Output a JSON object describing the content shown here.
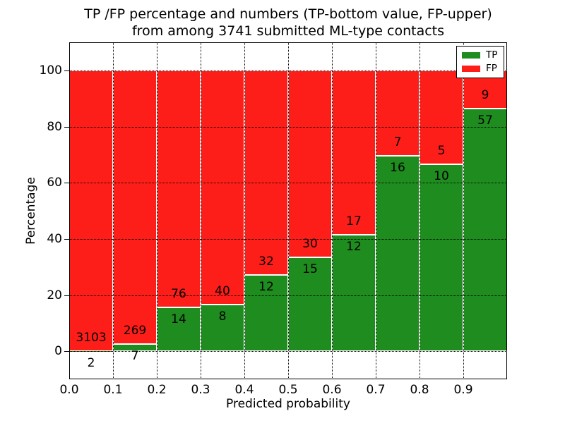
{
  "figure": {
    "title_line1": "TP /FP percentage and numbers (TP-bottom value, FP-upper)",
    "title_line2": "from among 3741 submitted ML-type contacts",
    "xlabel": "Predicted probability",
    "ylabel": "Percentage"
  },
  "axes": {
    "ylim": [
      -10,
      110
    ],
    "xlim": [
      0.0,
      1.0
    ],
    "yticks": [
      0,
      20,
      40,
      60,
      80,
      100
    ],
    "xtick_labels": [
      "0.0",
      "0.1",
      "0.2",
      "0.3",
      "0.4",
      "0.5",
      "0.6",
      "0.7",
      "0.8",
      "0.9"
    ],
    "grid_style": "dotted"
  },
  "legend": {
    "position": "upper right",
    "items": [
      {
        "label": "TP",
        "color": "#1e8c1e"
      },
      {
        "label": "FP",
        "color": "#fd1e19"
      }
    ]
  },
  "chart_data": {
    "type": "bar",
    "stacked": true,
    "normalized": "percent of bin total",
    "title": "TP /FP percentage and numbers (TP-bottom value, FP-upper) from among 3741 submitted ML-type contacts",
    "xlabel": "Predicted probability",
    "ylabel": "Percentage",
    "ylim": [
      -10,
      110
    ],
    "grid": true,
    "legend_position": "upper right",
    "total_contacts": 3741,
    "bin_edges": [
      0.0,
      0.1,
      0.2,
      0.3,
      0.4,
      0.5,
      0.6,
      0.7,
      0.8,
      0.9,
      1.0
    ],
    "series": [
      {
        "name": "TP",
        "color": "#1e8c1e",
        "counts": [
          2,
          7,
          14,
          8,
          12,
          15,
          12,
          16,
          10,
          57
        ]
      },
      {
        "name": "FP",
        "color": "#fd1e19",
        "counts": [
          3103,
          269,
          76,
          40,
          32,
          30,
          17,
          7,
          5,
          9
        ]
      }
    ],
    "tp_percent": [
      0.06,
      2.54,
      15.56,
      16.67,
      27.27,
      33.33,
      41.38,
      69.57,
      66.67,
      86.36
    ]
  }
}
